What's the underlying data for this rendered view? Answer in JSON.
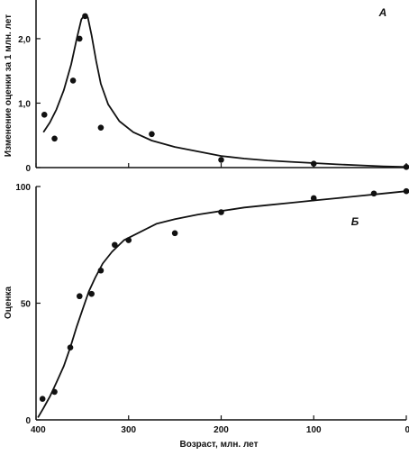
{
  "chart_data": [
    {
      "type": "scatter",
      "panel_label": "А",
      "ylabel": "Изменение оценки за 1 млн. лет",
      "xlabel": "",
      "xlim": [
        400,
        0
      ],
      "ylim": [
        0,
        2.6
      ],
      "x_ticks": [
        400,
        300,
        200,
        100,
        0
      ],
      "y_ticks": [
        0,
        1.0,
        2.0
      ],
      "y_tick_labels": [
        "0",
        "1,0",
        "2,0"
      ],
      "grid": false,
      "series": [
        {
          "points": [
            {
              "x": 391,
              "y": 0.82
            },
            {
              "x": 380,
              "y": 0.45
            },
            {
              "x": 360,
              "y": 1.35
            },
            {
              "x": 353,
              "y": 2.0
            },
            {
              "x": 347,
              "y": 2.35
            },
            {
              "x": 330,
              "y": 0.62
            },
            {
              "x": 275,
              "y": 0.52
            },
            {
              "x": 200,
              "y": 0.12
            },
            {
              "x": 100,
              "y": 0.06
            },
            {
              "x": 0,
              "y": 0.01
            }
          ],
          "fit_curve": [
            [
              392,
              0.55
            ],
            [
              385,
              0.7
            ],
            [
              378,
              0.9
            ],
            [
              370,
              1.2
            ],
            [
              362,
              1.6
            ],
            [
              356,
              2.0
            ],
            [
              351,
              2.3
            ],
            [
              347,
              2.38
            ],
            [
              344,
              2.33
            ],
            [
              340,
              2.05
            ],
            [
              335,
              1.65
            ],
            [
              330,
              1.3
            ],
            [
              322,
              0.98
            ],
            [
              310,
              0.72
            ],
            [
              295,
              0.55
            ],
            [
              275,
              0.42
            ],
            [
              250,
              0.32
            ],
            [
              225,
              0.25
            ],
            [
              200,
              0.18
            ],
            [
              175,
              0.14
            ],
            [
              150,
              0.11
            ],
            [
              125,
              0.09
            ],
            [
              100,
              0.07
            ],
            [
              75,
              0.05
            ],
            [
              50,
              0.035
            ],
            [
              25,
              0.02
            ],
            [
              0,
              0.01
            ]
          ]
        }
      ]
    },
    {
      "type": "scatter",
      "panel_label": "Б",
      "ylabel": "Оценка",
      "xlabel": "Возраст, млн. лет",
      "xlim": [
        400,
        0
      ],
      "ylim": [
        0,
        100
      ],
      "x_ticks": [
        400,
        300,
        200,
        100,
        0
      ],
      "y_ticks": [
        0,
        50,
        100
      ],
      "grid": false,
      "series": [
        {
          "points": [
            {
              "x": 393,
              "y": 9
            },
            {
              "x": 380,
              "y": 12
            },
            {
              "x": 363,
              "y": 31
            },
            {
              "x": 353,
              "y": 53
            },
            {
              "x": 340,
              "y": 54
            },
            {
              "x": 330,
              "y": 64
            },
            {
              "x": 315,
              "y": 75
            },
            {
              "x": 300,
              "y": 77
            },
            {
              "x": 250,
              "y": 80
            },
            {
              "x": 200,
              "y": 89
            },
            {
              "x": 100,
              "y": 95
            },
            {
              "x": 35,
              "y": 97
            },
            {
              "x": 0,
              "y": 98
            }
          ],
          "fit_curve": [
            [
              398,
              1
            ],
            [
              392,
              5
            ],
            [
              385,
              10
            ],
            [
              378,
              16
            ],
            [
              370,
              23
            ],
            [
              363,
              31
            ],
            [
              356,
              40
            ],
            [
              350,
              47
            ],
            [
              343,
              55
            ],
            [
              336,
              61
            ],
            [
              328,
              67
            ],
            [
              318,
              72
            ],
            [
              305,
              77
            ],
            [
              290,
              80
            ],
            [
              270,
              84
            ],
            [
              250,
              86
            ],
            [
              225,
              88
            ],
            [
              200,
              89.5
            ],
            [
              175,
              91
            ],
            [
              150,
              92
            ],
            [
              125,
              93
            ],
            [
              100,
              94
            ],
            [
              75,
              95
            ],
            [
              50,
              96
            ],
            [
              25,
              97
            ],
            [
              0,
              98
            ]
          ]
        }
      ]
    }
  ]
}
